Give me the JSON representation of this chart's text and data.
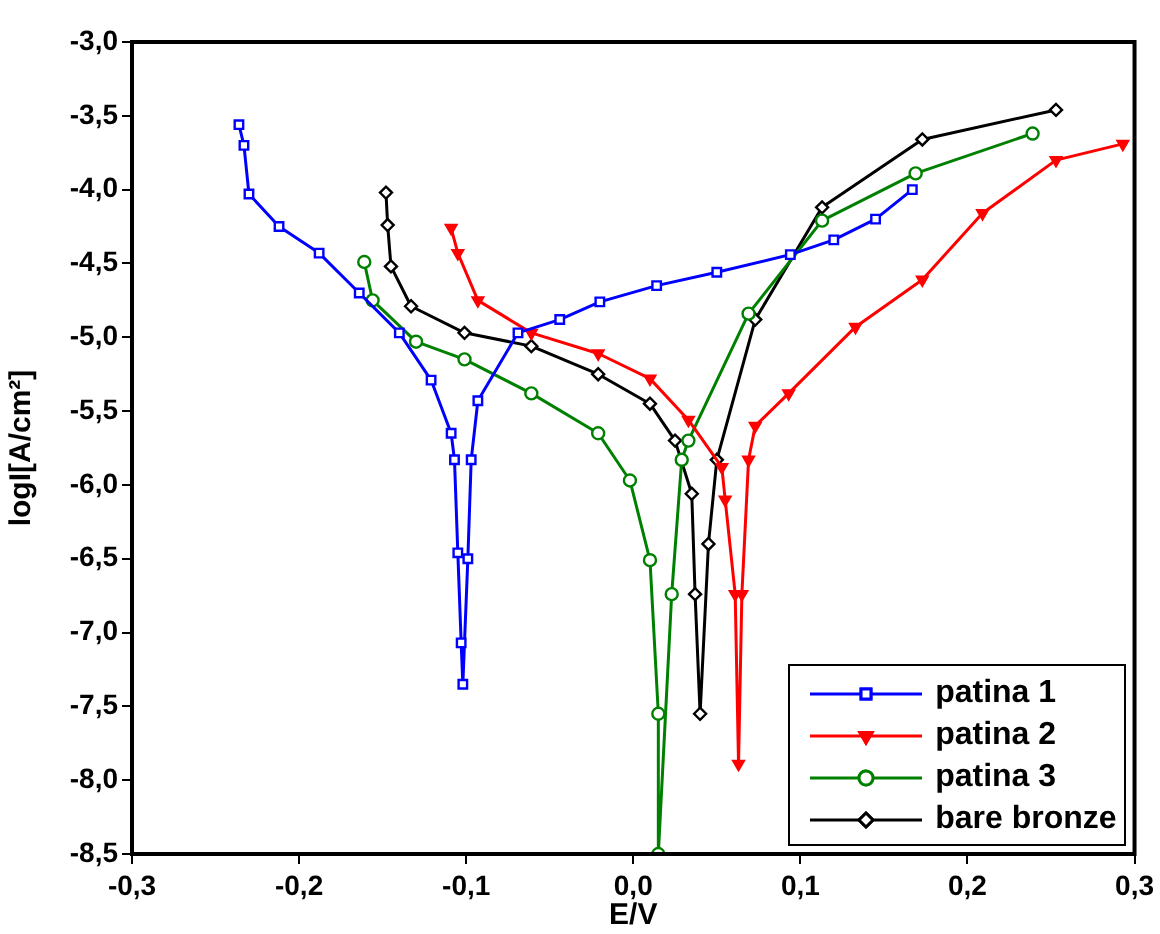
{
  "chart_data": {
    "type": "line",
    "xlabel": "E/V",
    "ylabel": "logI[A/cm²]",
    "xlim": [
      -0.3,
      0.3
    ],
    "xticks": [
      {
        "value": -0.3,
        "label": "-0,3"
      },
      {
        "value": -0.2,
        "label": "-0,2"
      },
      {
        "value": -0.1,
        "label": "-0,1"
      },
      {
        "value": 0,
        "label": "0,0"
      },
      {
        "value": 0.1,
        "label": "0,1"
      },
      {
        "value": 0.2,
        "label": "0,2"
      },
      {
        "value": 0.3,
        "label": "0,3"
      }
    ],
    "ylim": [
      -8.5,
      -3.0
    ],
    "yticks": [
      {
        "value": -8.5,
        "label": "-8,5"
      },
      {
        "value": -8,
        "label": "-8,0"
      },
      {
        "value": -7.5,
        "label": "-7,5"
      },
      {
        "value": -7,
        "label": "-7,0"
      },
      {
        "value": -6.5,
        "label": "-6,5"
      },
      {
        "value": -6,
        "label": "-6,0"
      },
      {
        "value": -5.5,
        "label": "-5,5"
      },
      {
        "value": -5,
        "label": "-5,0"
      },
      {
        "value": -4.5,
        "label": "-4,5"
      },
      {
        "value": -4,
        "label": "-4,0"
      },
      {
        "value": -3.5,
        "label": "-3,5"
      },
      {
        "value": -3,
        "label": "-3,0"
      }
    ],
    "grid": false,
    "legend": "bottom right",
    "line_style": "solid",
    "series": [
      {
        "name": "patina 1",
        "color": "#0000ff",
        "marker": "square",
        "x": [
          -0.236,
          -0.233,
          -0.23,
          -0.212,
          -0.188,
          -0.164,
          -0.14,
          -0.121,
          -0.109,
          -0.107,
          -0.105,
          -0.103,
          -0.102,
          -0.099,
          -0.097,
          -0.093,
          -0.069,
          -0.044,
          -0.02,
          0.014,
          0.05,
          0.094,
          0.12,
          0.145,
          0.167
        ],
        "values": [
          -3.56,
          -3.7,
          -4.03,
          -4.25,
          -4.43,
          -4.7,
          -4.97,
          -5.29,
          -5.65,
          -5.83,
          -6.46,
          -7.07,
          -7.35,
          -6.5,
          -5.83,
          -5.43,
          -4.97,
          -4.88,
          -4.76,
          -4.65,
          -4.56,
          -4.44,
          -4.34,
          -4.2,
          -4.0
        ]
      },
      {
        "name": "patina 2",
        "color": "#ff0000",
        "marker": "triangle",
        "x": [
          -0.109,
          -0.105,
          -0.093,
          -0.061,
          -0.021,
          0.01,
          0.033,
          0.053,
          0.055,
          0.061,
          0.063,
          0.065,
          0.069,
          0.073,
          0.093,
          0.133,
          0.173,
          0.209,
          0.253,
          0.293
        ],
        "values": [
          -4.26,
          -4.43,
          -4.75,
          -4.97,
          -5.11,
          -5.28,
          -5.56,
          -5.88,
          -6.1,
          -6.74,
          -7.89,
          -6.74,
          -5.83,
          -5.6,
          -5.38,
          -4.93,
          -4.61,
          -4.16,
          -3.8,
          -3.69
        ]
      },
      {
        "name": "patina 3",
        "color": "#008000",
        "marker": "circle",
        "x": [
          -0.161,
          -0.156,
          -0.13,
          -0.101,
          -0.061,
          -0.021,
          -0.002,
          0.01,
          0.015,
          0.015,
          0.023,
          0.029,
          0.033,
          0.069,
          0.113,
          0.169,
          0.239
        ],
        "values": [
          -4.49,
          -4.75,
          -5.03,
          -5.15,
          -5.38,
          -5.65,
          -5.97,
          -6.51,
          -7.55,
          -8.5,
          -6.74,
          -5.83,
          -5.7,
          -4.84,
          -4.21,
          -3.89,
          -3.62
        ]
      },
      {
        "name": "bare bronze",
        "color": "#000000",
        "marker": "diamond",
        "x": [
          -0.148,
          -0.147,
          -0.145,
          -0.133,
          -0.101,
          -0.061,
          -0.021,
          0.01,
          0.025,
          0.035,
          0.037,
          0.04,
          0.045,
          0.05,
          0.073,
          0.113,
          0.173,
          0.253
        ],
        "values": [
          -4.02,
          -4.24,
          -4.52,
          -4.79,
          -4.97,
          -5.06,
          -5.25,
          -5.45,
          -5.7,
          -6.06,
          -6.74,
          -7.55,
          -6.4,
          -5.83,
          -4.88,
          -4.12,
          -3.66,
          -3.46
        ]
      }
    ]
  }
}
